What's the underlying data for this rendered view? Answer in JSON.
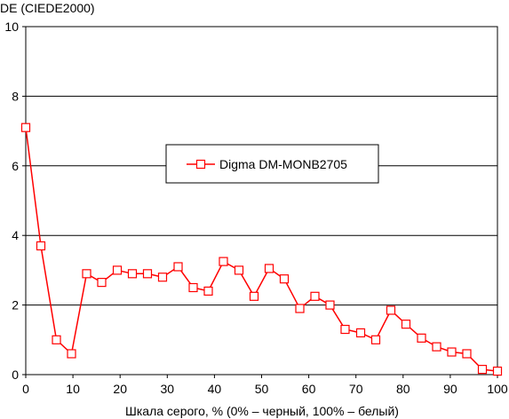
{
  "chart_data": {
    "type": "line",
    "ylabel": "DE (CIEDE2000)",
    "xlabel": "Шкала серого, % (0% – черный, 100% – белый)",
    "xlim": [
      0,
      100
    ],
    "ylim": [
      0,
      10
    ],
    "xticks": [
      "0",
      "10",
      "20",
      "30",
      "40",
      "50",
      "60",
      "70",
      "80",
      "90",
      "100"
    ],
    "yticks": [
      "0",
      "2",
      "4",
      "6",
      "8",
      "10"
    ],
    "grid": "horizontal",
    "legend_position": "center",
    "series": [
      {
        "name": "Digma DM-MONB2705",
        "color": "#ff0000",
        "marker": "square-open",
        "x": [
          0,
          3.2,
          6.5,
          9.7,
          12.9,
          16.1,
          19.4,
          22.6,
          25.8,
          29,
          32.3,
          35.5,
          38.7,
          41.9,
          45.2,
          48.4,
          51.6,
          54.8,
          58.1,
          61.3,
          64.5,
          67.7,
          71,
          74.2,
          77.4,
          80.6,
          83.9,
          87.1,
          90.3,
          93.5,
          96.8,
          100
        ],
        "y": [
          7.1,
          3.7,
          1.0,
          0.6,
          2.9,
          2.65,
          3.0,
          2.9,
          2.9,
          2.8,
          3.1,
          2.5,
          2.4,
          3.25,
          3.0,
          2.25,
          3.05,
          2.75,
          1.9,
          2.25,
          2.0,
          1.3,
          1.2,
          1.0,
          1.85,
          1.45,
          1.05,
          0.8,
          0.65,
          0.6,
          0.15,
          0.1
        ]
      }
    ]
  }
}
